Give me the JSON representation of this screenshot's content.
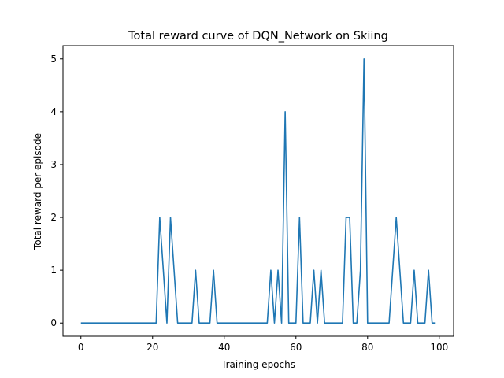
{
  "chart_data": {
    "type": "line",
    "title": "Total reward curve of DQN_Network on Skiing",
    "xlabel": "Training epochs",
    "ylabel": "Total reward per episode",
    "xlim": [
      -5,
      104
    ],
    "ylim": [
      -0.25,
      5.25
    ],
    "x_ticks": [
      0,
      20,
      40,
      60,
      80,
      100
    ],
    "y_ticks": [
      0,
      1,
      2,
      3,
      4,
      5
    ],
    "grid": false,
    "line_color": "#1f77b4",
    "series": [
      {
        "x": [
          0,
          1,
          2,
          3,
          4,
          5,
          6,
          7,
          8,
          9,
          10,
          11,
          12,
          13,
          14,
          15,
          16,
          17,
          18,
          19,
          20,
          21,
          22,
          23,
          24,
          25,
          26,
          27,
          28,
          29,
          30,
          31,
          32,
          33,
          34,
          35,
          36,
          37,
          38,
          39,
          40,
          41,
          42,
          43,
          44,
          45,
          46,
          47,
          48,
          49,
          50,
          51,
          52,
          53,
          54,
          55,
          56,
          57,
          58,
          59,
          60,
          61,
          62,
          63,
          64,
          65,
          66,
          67,
          68,
          69,
          70,
          71,
          72,
          73,
          74,
          75,
          76,
          77,
          78,
          79,
          80,
          81,
          82,
          83,
          84,
          85,
          86,
          87,
          88,
          89,
          90,
          91,
          92,
          93,
          94,
          95,
          96,
          97,
          98,
          99
        ],
        "values": [
          0,
          0,
          0,
          0,
          0,
          0,
          0,
          0,
          0,
          0,
          0,
          0,
          0,
          0,
          0,
          0,
          0,
          0,
          0,
          0,
          0,
          0,
          2,
          1,
          0,
          2,
          1,
          0,
          0,
          0,
          0,
          0,
          1,
          0,
          0,
          0,
          0,
          1,
          0,
          0,
          0,
          0,
          0,
          0,
          0,
          0,
          0,
          0,
          0,
          0,
          0,
          0,
          0,
          1,
          0,
          1,
          0,
          4,
          0,
          0,
          0,
          2,
          0,
          0,
          0,
          1,
          0,
          1,
          0,
          0,
          0,
          0,
          0,
          0,
          2,
          2,
          0,
          0,
          1,
          5,
          0,
          0,
          0,
          0,
          0,
          0,
          0,
          1,
          2,
          1,
          0,
          0,
          0,
          1,
          0,
          0,
          0,
          1,
          0,
          0
        ]
      }
    ]
  }
}
